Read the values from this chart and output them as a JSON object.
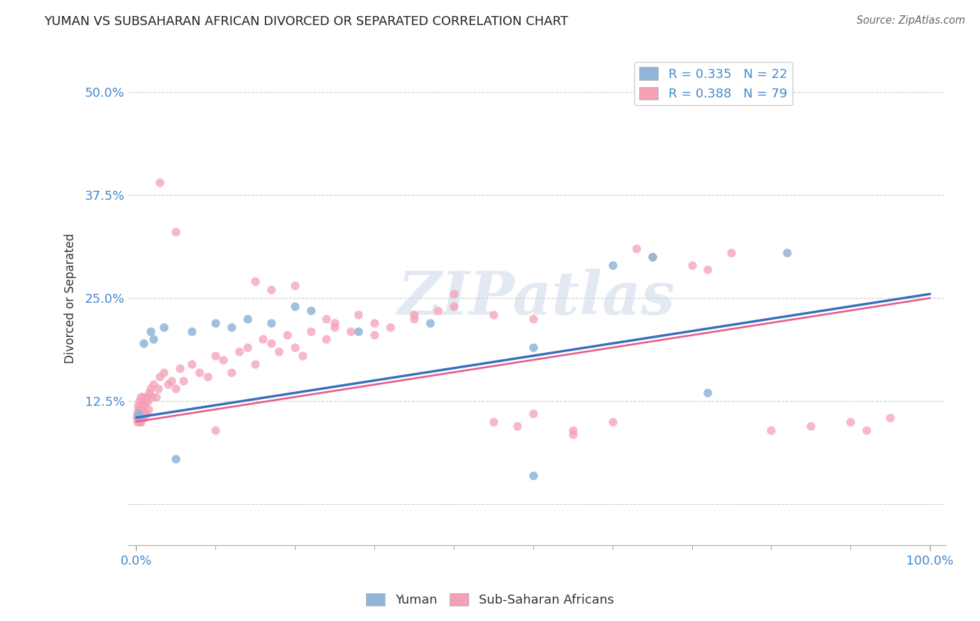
{
  "title": "YUMAN VS SUBSAHARAN AFRICAN DIVORCED OR SEPARATED CORRELATION CHART",
  "source": "Source: ZipAtlas.com",
  "ylabel": "Divorced or Separated",
  "xlim": [
    0.0,
    100.0
  ],
  "ylim": [
    -5.0,
    55.0
  ],
  "yticks": [
    0.0,
    12.5,
    25.0,
    37.5,
    50.0
  ],
  "watermark_text": "ZIPatlas",
  "yuman_color": "#92b4d7",
  "subsaharan_color": "#f4a0b5",
  "yuman_line_color": "#3a6ebd",
  "subsaharan_line_color": "#e8608a",
  "background_color": "#ffffff",
  "grid_color": "#cccccc",
  "title_fontsize": 13,
  "tick_fontsize": 13,
  "axis_label_fontsize": 12,
  "tick_color": "#4488cc",
  "yuman_line_start": 10.5,
  "yuman_line_end": 25.5,
  "ss_line_start": 10.0,
  "ss_line_end": 25.0,
  "yuman_x": [
    0.3,
    0.5,
    1.0,
    1.8,
    2.2,
    3.5,
    5.0,
    7.0,
    10.0,
    12.0,
    14.0,
    17.0,
    20.0,
    22.0,
    28.0,
    37.0,
    50.0,
    60.0,
    65.0,
    72.0,
    82.0,
    50.0
  ],
  "yuman_y": [
    11.0,
    10.5,
    19.5,
    21.0,
    20.0,
    21.5,
    5.5,
    21.0,
    22.0,
    21.5,
    22.5,
    22.0,
    24.0,
    23.5,
    21.0,
    22.0,
    19.0,
    29.0,
    30.0,
    13.5,
    30.5,
    3.5
  ],
  "ss_x": [
    0.1,
    0.15,
    0.2,
    0.25,
    0.3,
    0.35,
    0.4,
    0.45,
    0.5,
    0.55,
    0.6,
    0.65,
    0.7,
    0.75,
    0.8,
    0.85,
    0.9,
    0.95,
    1.0,
    1.05,
    1.1,
    1.2,
    1.3,
    1.4,
    1.5,
    1.6,
    1.7,
    1.8,
    2.0,
    2.2,
    2.5,
    2.8,
    3.0,
    3.5,
    4.0,
    4.5,
    5.0,
    5.5,
    6.0,
    7.0,
    8.0,
    9.0,
    10.0,
    11.0,
    12.0,
    13.0,
    14.0,
    15.0,
    16.0,
    17.0,
    18.0,
    19.0,
    20.0,
    21.0,
    22.0,
    24.0,
    25.0,
    27.0,
    28.0,
    30.0,
    32.0,
    35.0,
    38.0,
    40.0,
    45.0,
    48.0,
    50.0,
    55.0,
    60.0,
    63.0,
    65.0,
    70.0,
    72.0,
    75.0,
    80.0,
    85.0,
    90.0,
    92.0,
    95.0
  ],
  "ss_y": [
    10.5,
    11.0,
    10.0,
    11.5,
    12.0,
    10.5,
    11.0,
    12.5,
    10.0,
    11.5,
    13.0,
    10.0,
    12.0,
    11.0,
    10.5,
    12.0,
    11.5,
    13.0,
    10.5,
    12.0,
    11.0,
    12.5,
    11.0,
    13.0,
    12.5,
    11.5,
    13.5,
    14.0,
    13.0,
    14.5,
    13.0,
    14.0,
    15.5,
    16.0,
    14.5,
    15.0,
    14.0,
    16.5,
    15.0,
    17.0,
    16.0,
    15.5,
    18.0,
    17.5,
    16.0,
    18.5,
    19.0,
    17.0,
    20.0,
    19.5,
    18.5,
    20.5,
    19.0,
    18.0,
    21.0,
    20.0,
    22.0,
    21.0,
    23.0,
    22.0,
    21.5,
    22.5,
    23.5,
    24.0,
    23.0,
    9.5,
    22.5,
    9.0,
    10.0,
    31.0,
    30.0,
    29.0,
    28.5,
    30.5,
    9.0,
    9.5,
    10.0,
    9.0,
    10.5
  ],
  "ss_outliers_x": [
    3.0,
    5.0,
    15.0,
    17.0,
    20.0,
    24.0,
    25.0,
    30.0,
    35.0,
    40.0,
    45.0,
    50.0,
    55.0,
    10.0
  ],
  "ss_outliers_y": [
    39.0,
    33.0,
    27.0,
    26.0,
    26.5,
    22.5,
    21.5,
    20.5,
    23.0,
    25.5,
    10.0,
    11.0,
    8.5,
    9.0
  ]
}
